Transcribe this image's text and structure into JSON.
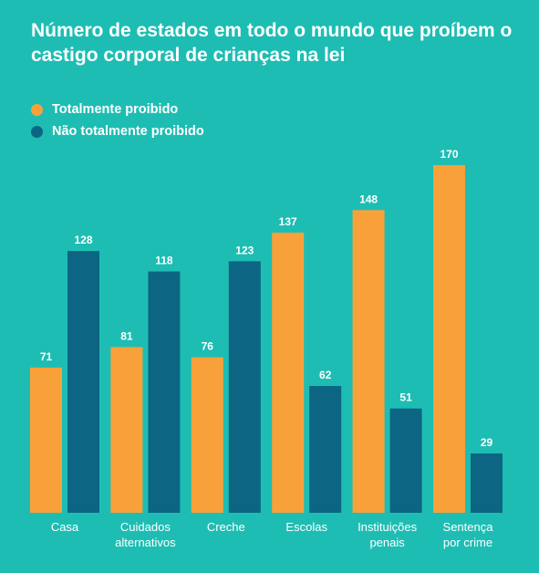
{
  "title": "Número de estados em todo o mundo que proíbem o castigo corporal de crianças na lei",
  "colors": {
    "background": "#1ebdb3",
    "totally": "#f8a13a",
    "not_totally": "#0b6583",
    "text": "#ffffff"
  },
  "chart_data": {
    "type": "bar",
    "title": "Número de estados em todo o mundo que proíbem o castigo corporal de crianças na lei",
    "categories": [
      [
        "Casa"
      ],
      [
        "Cuidados",
        "alternativos"
      ],
      [
        "Creche"
      ],
      [
        "Escolas"
      ],
      [
        "Instituições",
        "penais"
      ],
      [
        "Sentença",
        "por crime"
      ]
    ],
    "series": [
      {
        "name": "Totalmente proibido",
        "color": "#f8a13a",
        "values": [
          71,
          81,
          76,
          137,
          148,
          170
        ]
      },
      {
        "name": "Não totalmente proibido",
        "color": "#0b6583",
        "values": [
          128,
          118,
          123,
          62,
          51,
          29
        ]
      }
    ],
    "ylim": [
      0,
      170
    ],
    "grid": false,
    "legend": "top-left",
    "xlabel": "",
    "ylabel": ""
  }
}
